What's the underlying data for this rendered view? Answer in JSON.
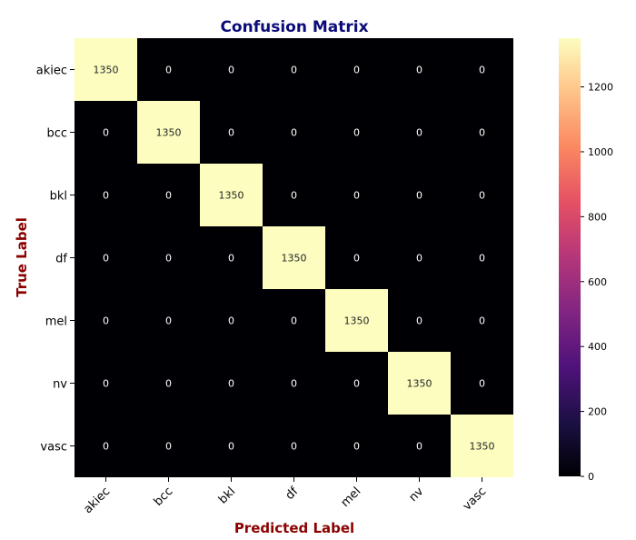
{
  "chart_data": {
    "type": "heatmap",
    "title": "Confusion Matrix",
    "xlabel": "Predicted Label",
    "ylabel": "True Label",
    "x_categories": [
      "akiec",
      "bcc",
      "bkl",
      "df",
      "mel",
      "nv",
      "vasc"
    ],
    "y_categories": [
      "akiec",
      "bcc",
      "bkl",
      "df",
      "mel",
      "nv",
      "vasc"
    ],
    "values": [
      [
        1350,
        0,
        0,
        0,
        0,
        0,
        0
      ],
      [
        0,
        1350,
        0,
        0,
        0,
        0,
        0
      ],
      [
        0,
        0,
        1350,
        0,
        0,
        0,
        0
      ],
      [
        0,
        0,
        0,
        1350,
        0,
        0,
        0
      ],
      [
        0,
        0,
        0,
        0,
        1350,
        0,
        0
      ],
      [
        0,
        0,
        0,
        0,
        0,
        1350,
        0
      ],
      [
        0,
        0,
        0,
        0,
        0,
        0,
        1350
      ]
    ],
    "colormap": "magma",
    "colorbar": {
      "range": [
        0,
        1350
      ],
      "ticks": [
        0,
        200,
        400,
        600,
        800,
        1000,
        1200
      ]
    },
    "annotations": true
  }
}
